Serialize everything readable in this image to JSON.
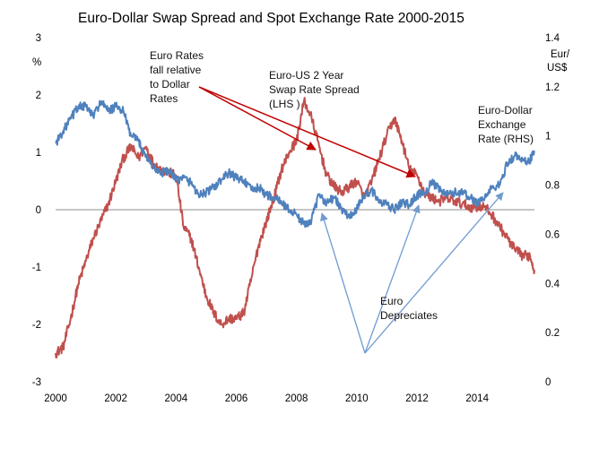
{
  "chart_data": {
    "type": "line",
    "title": "Euro-Dollar Swap Spread and Spot Exchange Rate 2000-2015",
    "left_axis": {
      "unit": "%",
      "range": [
        -3,
        3
      ],
      "ticks": [
        "3",
        "2",
        "1",
        "0",
        "-1",
        "-2",
        "-3"
      ]
    },
    "right_axis": {
      "unit_lines": [
        "Eur/",
        "US$"
      ],
      "range": [
        0,
        1.4
      ],
      "ticks": [
        "1.4",
        "1.2",
        "1",
        "0.8",
        "0.6",
        "0.4",
        "0.2",
        "0"
      ]
    },
    "x_axis": {
      "range": [
        2000,
        2015.9
      ],
      "ticks": [
        "2000",
        "2002",
        "2004",
        "2006",
        "2008",
        "2010",
        "2012",
        "2014"
      ]
    },
    "grid": false,
    "zero_line": true,
    "series": [
      {
        "label_lines": [
          "Euro-US 2 Year",
          "Swap Rate Spread",
          "(LHS )"
        ],
        "axis": "left",
        "color": "#c0504d",
        "x": [
          2000.0,
          2000.25,
          2000.5,
          2000.75,
          2001.0,
          2001.25,
          2001.5,
          2001.75,
          2002.0,
          2002.25,
          2002.5,
          2002.75,
          2003.0,
          2003.25,
          2003.5,
          2003.75,
          2004.0,
          2004.25,
          2004.5,
          2004.75,
          2005.0,
          2005.25,
          2005.5,
          2005.75,
          2006.0,
          2006.25,
          2006.5,
          2006.75,
          2007.0,
          2007.25,
          2007.5,
          2007.75,
          2008.0,
          2008.25,
          2008.5,
          2008.75,
          2009.0,
          2009.25,
          2009.5,
          2009.75,
          2010.0,
          2010.25,
          2010.5,
          2010.75,
          2011.0,
          2011.25,
          2011.5,
          2011.75,
          2012.0,
          2012.25,
          2012.5,
          2012.75,
          2013.0,
          2013.25,
          2013.5,
          2013.75,
          2014.0,
          2014.25,
          2014.5,
          2014.75,
          2015.0,
          2015.25,
          2015.5,
          2015.75,
          2015.9
        ],
        "values": [
          -2.5,
          -2.4,
          -1.9,
          -1.3,
          -0.9,
          -0.5,
          -0.2,
          0.1,
          0.5,
          0.9,
          1.1,
          0.9,
          1.1,
          0.8,
          0.7,
          0.65,
          0.6,
          -0.3,
          -0.5,
          -1.0,
          -1.5,
          -1.8,
          -2.0,
          -1.9,
          -1.9,
          -1.8,
          -1.2,
          -0.6,
          -0.2,
          0.2,
          0.7,
          1.0,
          1.2,
          1.9,
          1.6,
          1.1,
          0.6,
          0.4,
          0.3,
          0.4,
          0.5,
          0.2,
          0.5,
          0.9,
          1.3,
          1.6,
          1.2,
          0.7,
          0.6,
          0.3,
          0.2,
          0.15,
          0.2,
          0.15,
          0.1,
          0.05,
          0.05,
          0.05,
          -0.1,
          -0.3,
          -0.5,
          -0.7,
          -0.8,
          -0.8,
          -1.05
        ]
      },
      {
        "label_lines": [
          "Euro-Dollar",
          "Exchange",
          "Rate (RHS)"
        ],
        "axis": "right",
        "color": "#4f81bd",
        "x": [
          2000.0,
          2000.25,
          2000.5,
          2000.75,
          2001.0,
          2001.25,
          2001.5,
          2001.75,
          2002.0,
          2002.25,
          2002.5,
          2002.75,
          2003.0,
          2003.25,
          2003.5,
          2003.75,
          2004.0,
          2004.25,
          2004.5,
          2004.75,
          2005.0,
          2005.25,
          2005.5,
          2005.75,
          2006.0,
          2006.25,
          2006.5,
          2006.75,
          2007.0,
          2007.25,
          2007.5,
          2007.75,
          2008.0,
          2008.25,
          2008.5,
          2008.75,
          2009.0,
          2009.25,
          2009.5,
          2009.75,
          2010.0,
          2010.25,
          2010.5,
          2010.75,
          2011.0,
          2011.25,
          2011.5,
          2011.75,
          2012.0,
          2012.25,
          2012.5,
          2012.75,
          2013.0,
          2013.25,
          2013.5,
          2013.75,
          2014.0,
          2014.25,
          2014.5,
          2014.75,
          2015.0,
          2015.25,
          2015.5,
          2015.75,
          2015.9
        ],
        "values": [
          0.97,
          1.02,
          1.07,
          1.12,
          1.12,
          1.08,
          1.14,
          1.1,
          1.12,
          1.1,
          1.0,
          0.98,
          0.92,
          0.87,
          0.85,
          0.86,
          0.82,
          0.83,
          0.81,
          0.76,
          0.77,
          0.79,
          0.82,
          0.85,
          0.83,
          0.82,
          0.78,
          0.79,
          0.76,
          0.75,
          0.73,
          0.7,
          0.68,
          0.64,
          0.66,
          0.76,
          0.73,
          0.75,
          0.7,
          0.67,
          0.7,
          0.76,
          0.78,
          0.73,
          0.72,
          0.7,
          0.73,
          0.72,
          0.76,
          0.77,
          0.81,
          0.78,
          0.76,
          0.77,
          0.77,
          0.75,
          0.73,
          0.75,
          0.79,
          0.8,
          0.89,
          0.92,
          0.9,
          0.9,
          0.94
        ]
      }
    ],
    "annotations": [
      {
        "lines": [
          "Euro Rates",
          "fall relative",
          "to Dollar",
          "Rates"
        ]
      },
      {
        "lines": [
          "Euro",
          "Depreciates"
        ]
      }
    ]
  }
}
